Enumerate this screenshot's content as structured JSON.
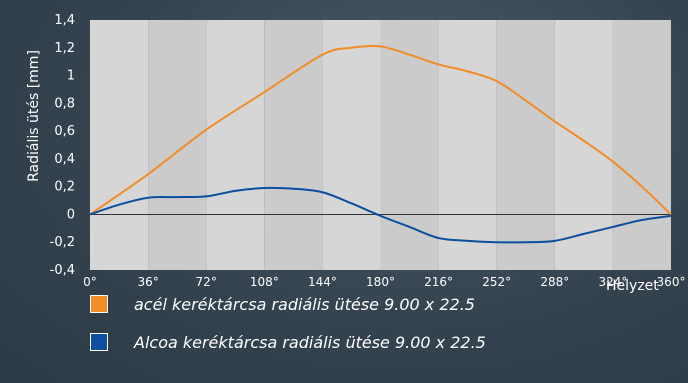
{
  "colors": {
    "series_1": "#f28c28",
    "series_2": "#0b4f9e",
    "plot_band_light": "#d6d6d6",
    "plot_band_dark": "#cbcbcb",
    "zero_line": "#333333"
  },
  "chart_data": {
    "type": "line",
    "title": "",
    "xlabel": "Helyzet",
    "ylabel": "Radiális ütés [mm]",
    "x_tick_labels": [
      "0°",
      "36°",
      "72°",
      "108°",
      "144°",
      "180°",
      "216°",
      "252°",
      "288°",
      "324°",
      "360°"
    ],
    "y_tick_labels": [
      "1,4",
      "1,2",
      "1",
      "0,8",
      "0,6",
      "0,4",
      "0,2",
      "0",
      "-0,2",
      "-0,4"
    ],
    "xlim": [
      0,
      360
    ],
    "ylim": [
      -0.4,
      1.4
    ],
    "grid": "vertical bands",
    "legend_position": "bottom",
    "series": [
      {
        "name": "acél keréktárcsa radiális ütése 9.00 x 22.5",
        "x": [
          0,
          36,
          72,
          108,
          144,
          162,
          180,
          198,
          216,
          234,
          252,
          270,
          288,
          306,
          324,
          342,
          360
        ],
        "y": [
          0,
          0.29,
          0.61,
          0.88,
          1.15,
          1.2,
          1.21,
          1.15,
          1.08,
          1.03,
          0.96,
          0.82,
          0.67,
          0.53,
          0.38,
          0.2,
          0
        ]
      },
      {
        "name": "Alcoa keréktárcsa radiális ütése 9.00 x 22.5",
        "x": [
          0,
          18,
          36,
          54,
          72,
          90,
          108,
          126,
          144,
          162,
          180,
          198,
          216,
          234,
          252,
          270,
          288,
          306,
          324,
          342,
          360
        ],
        "y": [
          0,
          0.07,
          0.12,
          0.125,
          0.13,
          0.17,
          0.19,
          0.185,
          0.16,
          0.08,
          -0.01,
          -0.09,
          -0.17,
          -0.19,
          -0.2,
          -0.2,
          -0.19,
          -0.14,
          -0.09,
          -0.04,
          -0.01
        ]
      }
    ]
  }
}
